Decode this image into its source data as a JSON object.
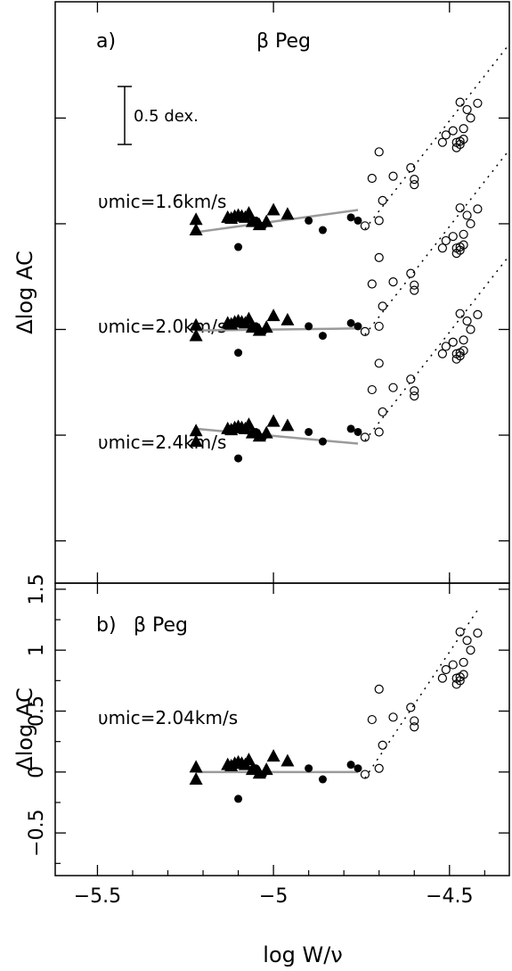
{
  "chart_data": [
    {
      "type": "scatter",
      "panel_label": "a)",
      "star": "β Peg",
      "scale_bar_label": "0.5 dex.",
      "xlabel": "log W/ν",
      "ylabel": "Δlog AC",
      "xlim": [
        -5.62,
        -4.33
      ],
      "ylim": [
        -1.4,
        4.1
      ],
      "y_tick_labels_shown": false,
      "groups": [
        {
          "label": "υmic=1.6km/s",
          "offset": 2.0,
          "fit": [
            [
              -5.22,
              -0.08
            ],
            [
              -4.76,
              0.13
            ]
          ],
          "triangles": [
            [
              -5.22,
              0.04
            ],
            [
              -5.22,
              -0.06
            ],
            [
              -5.13,
              0.06
            ],
            [
              -5.12,
              0.05
            ],
            [
              -5.11,
              0.07
            ],
            [
              -5.1,
              0.08
            ],
            [
              -5.09,
              0.07
            ],
            [
              -5.08,
              0.06
            ],
            [
              -5.07,
              0.1
            ],
            [
              -5.06,
              0.02
            ],
            [
              -5.04,
              -0.01
            ],
            [
              -5.02,
              0.02
            ],
            [
              -5.0,
              0.13
            ],
            [
              -4.96,
              0.09
            ]
          ],
          "filled": [
            [
              -5.1,
              -0.22
            ],
            [
              -5.05,
              0.03
            ],
            [
              -5.03,
              -0.02
            ],
            [
              -4.9,
              0.03
            ],
            [
              -4.86,
              -0.06
            ],
            [
              -4.78,
              0.06
            ],
            [
              -4.76,
              0.03
            ]
          ],
          "open": [
            [
              -4.74,
              -0.02
            ],
            [
              -4.7,
              0.03
            ],
            [
              -4.69,
              0.22
            ],
            [
              -4.72,
              0.43
            ],
            [
              -4.7,
              0.68
            ],
            [
              -4.66,
              0.45
            ],
            [
              -4.61,
              0.53
            ],
            [
              -4.6,
              0.42
            ],
            [
              -4.6,
              0.37
            ],
            [
              -4.52,
              0.77
            ],
            [
              -4.51,
              0.84
            ],
            [
              -4.49,
              0.88
            ],
            [
              -4.48,
              0.77
            ],
            [
              -4.48,
              0.72
            ],
            [
              -4.47,
              0.75
            ],
            [
              -4.47,
              0.78
            ],
            [
              -4.46,
              0.8
            ],
            [
              -4.47,
              1.15
            ],
            [
              -4.46,
              0.9
            ],
            [
              -4.45,
              1.08
            ],
            [
              -4.44,
              1.0
            ],
            [
              -4.42,
              1.14
            ]
          ]
        },
        {
          "label": "υmic=2.0km/s",
          "offset": 1.0,
          "fit": [
            [
              -5.22,
              -0.01
            ],
            [
              -4.76,
              0.01
            ]
          ],
          "triangles": [
            [
              -5.22,
              0.04
            ],
            [
              -5.22,
              -0.06
            ],
            [
              -5.13,
              0.06
            ],
            [
              -5.12,
              0.05
            ],
            [
              -5.11,
              0.07
            ],
            [
              -5.1,
              0.08
            ],
            [
              -5.09,
              0.07
            ],
            [
              -5.08,
              0.06
            ],
            [
              -5.07,
              0.1
            ],
            [
              -5.06,
              0.02
            ],
            [
              -5.04,
              -0.01
            ],
            [
              -5.02,
              0.02
            ],
            [
              -5.0,
              0.13
            ],
            [
              -4.96,
              0.09
            ]
          ],
          "filled": [
            [
              -5.1,
              -0.22
            ],
            [
              -5.05,
              0.03
            ],
            [
              -5.03,
              -0.02
            ],
            [
              -4.9,
              0.03
            ],
            [
              -4.86,
              -0.06
            ],
            [
              -4.78,
              0.06
            ],
            [
              -4.76,
              0.03
            ]
          ],
          "open": [
            [
              -4.74,
              -0.02
            ],
            [
              -4.7,
              0.03
            ],
            [
              -4.69,
              0.22
            ],
            [
              -4.72,
              0.43
            ],
            [
              -4.7,
              0.68
            ],
            [
              -4.66,
              0.45
            ],
            [
              -4.61,
              0.53
            ],
            [
              -4.6,
              0.42
            ],
            [
              -4.6,
              0.37
            ],
            [
              -4.52,
              0.77
            ],
            [
              -4.51,
              0.84
            ],
            [
              -4.49,
              0.88
            ],
            [
              -4.48,
              0.77
            ],
            [
              -4.48,
              0.72
            ],
            [
              -4.47,
              0.75
            ],
            [
              -4.47,
              0.78
            ],
            [
              -4.46,
              0.8
            ],
            [
              -4.47,
              1.15
            ],
            [
              -4.46,
              0.9
            ],
            [
              -4.45,
              1.08
            ],
            [
              -4.44,
              1.0
            ],
            [
              -4.42,
              1.14
            ]
          ]
        },
        {
          "label": "υmic=2.4km/s",
          "offset": 0.0,
          "fit": [
            [
              -5.22,
              0.06
            ],
            [
              -4.76,
              -0.08
            ]
          ],
          "triangles": [
            [
              -5.22,
              0.04
            ],
            [
              -5.22,
              -0.06
            ],
            [
              -5.13,
              0.06
            ],
            [
              -5.12,
              0.05
            ],
            [
              -5.11,
              0.07
            ],
            [
              -5.1,
              0.08
            ],
            [
              -5.09,
              0.07
            ],
            [
              -5.08,
              0.06
            ],
            [
              -5.07,
              0.1
            ],
            [
              -5.06,
              0.02
            ],
            [
              -5.04,
              -0.01
            ],
            [
              -5.02,
              0.02
            ],
            [
              -5.0,
              0.13
            ],
            [
              -4.96,
              0.09
            ]
          ],
          "filled": [
            [
              -5.1,
              -0.22
            ],
            [
              -5.05,
              0.03
            ],
            [
              -5.03,
              -0.02
            ],
            [
              -4.9,
              0.03
            ],
            [
              -4.86,
              -0.06
            ],
            [
              -4.78,
              0.06
            ],
            [
              -4.76,
              0.03
            ]
          ],
          "open": [
            [
              -4.74,
              -0.02
            ],
            [
              -4.7,
              0.03
            ],
            [
              -4.69,
              0.22
            ],
            [
              -4.72,
              0.43
            ],
            [
              -4.7,
              0.68
            ],
            [
              -4.66,
              0.45
            ],
            [
              -4.61,
              0.53
            ],
            [
              -4.6,
              0.42
            ],
            [
              -4.6,
              0.37
            ],
            [
              -4.52,
              0.77
            ],
            [
              -4.51,
              0.84
            ],
            [
              -4.49,
              0.88
            ],
            [
              -4.48,
              0.77
            ],
            [
              -4.48,
              0.72
            ],
            [
              -4.47,
              0.75
            ],
            [
              -4.47,
              0.78
            ],
            [
              -4.46,
              0.8
            ],
            [
              -4.47,
              1.15
            ],
            [
              -4.46,
              0.9
            ],
            [
              -4.45,
              1.08
            ],
            [
              -4.44,
              1.0
            ],
            [
              -4.42,
              1.14
            ]
          ]
        }
      ],
      "dotted_line": [
        [
          -4.74,
          -0.05
        ],
        [
          -4.33,
          1.7
        ]
      ]
    },
    {
      "type": "scatter",
      "panel_label": "b)",
      "star": "β Peg",
      "annotation": "υmic=2.04km/s",
      "xlabel": "log W/ν",
      "ylabel": "Δlog AC",
      "xlim": [
        -5.62,
        -4.33
      ],
      "ylim": [
        -0.85,
        1.55
      ],
      "xticks": [
        -5.5,
        -5,
        -4.5
      ],
      "xtick_labels": [
        "−5.5",
        "−5",
        "−4.5"
      ],
      "yticks": [
        -0.5,
        0,
        0.5,
        1,
        1.5
      ],
      "ytick_labels": [
        "−0.5",
        "0",
        "0.5",
        "1",
        "1.5"
      ],
      "fit": [
        [
          -5.22,
          0.0
        ],
        [
          -4.76,
          0.0
        ]
      ],
      "triangles": [
        [
          -5.22,
          0.04
        ],
        [
          -5.22,
          -0.06
        ],
        [
          -5.13,
          0.06
        ],
        [
          -5.12,
          0.05
        ],
        [
          -5.11,
          0.07
        ],
        [
          -5.1,
          0.08
        ],
        [
          -5.09,
          0.07
        ],
        [
          -5.08,
          0.06
        ],
        [
          -5.07,
          0.1
        ],
        [
          -5.06,
          0.02
        ],
        [
          -5.04,
          -0.01
        ],
        [
          -5.02,
          0.02
        ],
        [
          -5.0,
          0.13
        ],
        [
          -4.96,
          0.09
        ]
      ],
      "filled": [
        [
          -5.1,
          -0.22
        ],
        [
          -5.05,
          0.03
        ],
        [
          -5.03,
          -0.02
        ],
        [
          -4.9,
          0.03
        ],
        [
          -4.86,
          -0.06
        ],
        [
          -4.78,
          0.06
        ],
        [
          -4.76,
          0.03
        ]
      ],
      "open": [
        [
          -4.74,
          -0.02
        ],
        [
          -4.7,
          0.03
        ],
        [
          -4.69,
          0.22
        ],
        [
          -4.72,
          0.43
        ],
        [
          -4.7,
          0.68
        ],
        [
          -4.66,
          0.45
        ],
        [
          -4.61,
          0.53
        ],
        [
          -4.6,
          0.42
        ],
        [
          -4.6,
          0.37
        ],
        [
          -4.52,
          0.77
        ],
        [
          -4.51,
          0.84
        ],
        [
          -4.49,
          0.88
        ],
        [
          -4.48,
          0.77
        ],
        [
          -4.48,
          0.72
        ],
        [
          -4.47,
          0.75
        ],
        [
          -4.47,
          0.78
        ],
        [
          -4.46,
          0.8
        ],
        [
          -4.47,
          1.15
        ],
        [
          -4.46,
          0.9
        ],
        [
          -4.45,
          1.08
        ],
        [
          -4.44,
          1.0
        ],
        [
          -4.42,
          1.14
        ]
      ],
      "dotted_line": [
        [
          -4.74,
          -0.05
        ],
        [
          -4.33,
          1.7
        ]
      ]
    }
  ]
}
